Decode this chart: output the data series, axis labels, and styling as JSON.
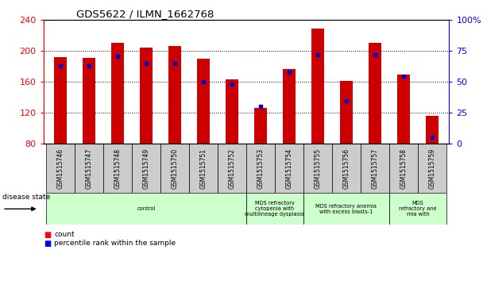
{
  "title": "GDS5622 / ILMN_1662768",
  "samples": [
    "GSM1515746",
    "GSM1515747",
    "GSM1515748",
    "GSM1515749",
    "GSM1515750",
    "GSM1515751",
    "GSM1515752",
    "GSM1515753",
    "GSM1515754",
    "GSM1515755",
    "GSM1515756",
    "GSM1515757",
    "GSM1515758",
    "GSM1515759"
  ],
  "counts": [
    192,
    191,
    211,
    204,
    207,
    190,
    163,
    126,
    177,
    229,
    161,
    211,
    170,
    116
  ],
  "percentile_ranks": [
    63,
    63,
    71,
    65,
    65,
    50,
    48,
    30,
    58,
    72,
    35,
    72,
    55,
    5
  ],
  "ymin": 80,
  "ymax": 240,
  "yticks": [
    80,
    120,
    160,
    200,
    240
  ],
  "right_yticks": [
    0,
    25,
    50,
    75,
    100
  ],
  "bar_color": "#cc0000",
  "percentile_color": "#0000cc",
  "tick_bg_color": "#cccccc",
  "group_bg_color": "#ccffcc",
  "disease_groups": [
    {
      "label": "control",
      "start": 0,
      "end": 7
    },
    {
      "label": "MDS refractory\ncytopenia with\nmultilineage dysplasia",
      "start": 7,
      "end": 9
    },
    {
      "label": "MDS refractory anemia\nwith excess blasts-1",
      "start": 9,
      "end": 12
    },
    {
      "label": "MDS\nrefractory ane\nmia with",
      "start": 12,
      "end": 14
    }
  ]
}
